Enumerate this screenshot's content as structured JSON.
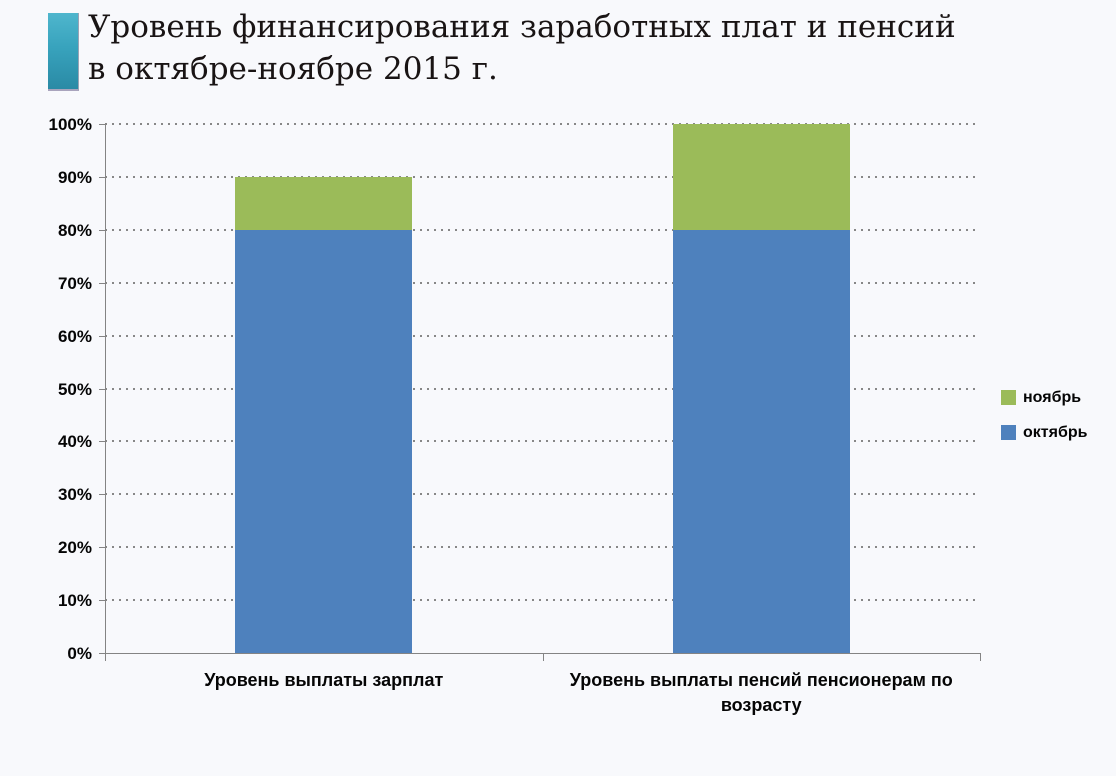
{
  "title": {
    "line1": "Уровень финансирования заработных плат и пенсий",
    "line2": "в октябре-ноябре 2015 г."
  },
  "chart_data": {
    "type": "bar",
    "stacked": true,
    "title": "Уровень финансирования заработных плат и пенсий в октябре-ноябре 2015 г.",
    "categories": [
      "Уровень выплаты зарплат",
      "Уровень выплаты пенсий пенсионерам по возрасту"
    ],
    "series": [
      {
        "name": "октябрь",
        "color": "#4e81bd",
        "values": [
          80,
          80
        ]
      },
      {
        "name": "ноябрь",
        "color": "#9bbb59",
        "values": [
          10,
          20
        ]
      }
    ],
    "stack_totals": [
      90,
      100
    ],
    "ylim": [
      0,
      100
    ],
    "ytick_step": 10,
    "ytick_labels": [
      "0%",
      "10%",
      "20%",
      "30%",
      "40%",
      "50%",
      "60%",
      "70%",
      "80%",
      "90%",
      "100%"
    ],
    "grid": "dotted-horizontal",
    "legend_position": "right",
    "legend_order": [
      "ноябрь",
      "октябрь"
    ]
  },
  "colors": {
    "background": "#f8f9fc",
    "axis": "#848484",
    "gridline": "#878787",
    "october_blue": "#4e81bd",
    "november_green": "#9bbb59",
    "accent_teal_top": "#4fb6cd",
    "accent_teal_bottom": "#2a8aa5",
    "title_text": "#191414",
    "label_text": "#050505"
  }
}
